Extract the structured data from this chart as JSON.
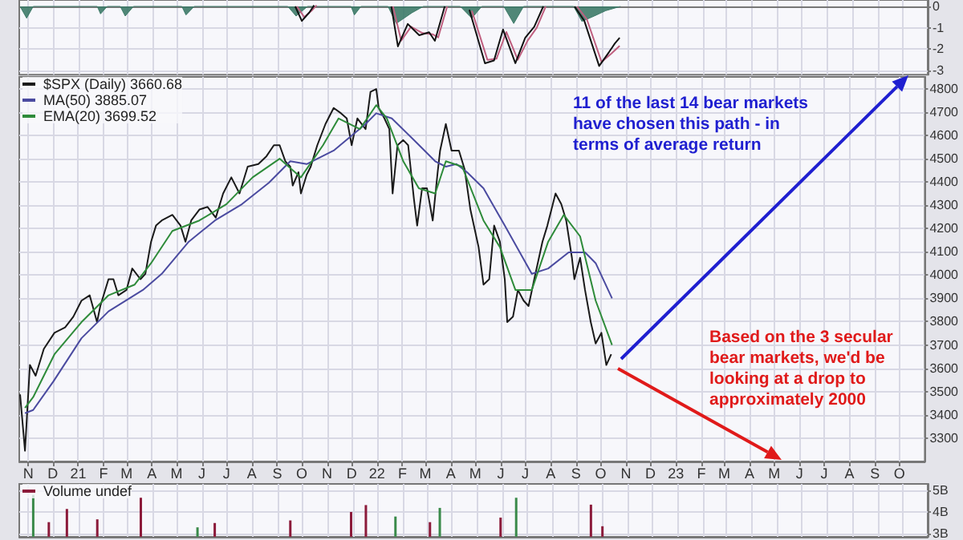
{
  "chart_data": [
    {
      "type": "line",
      "xlim": [
        "2020-10-21",
        "2023-11-01"
      ],
      "ylim": [
        -3.2,
        0.3
      ],
      "yticks": [
        0,
        -1,
        -2,
        -3
      ],
      "tick_labels": "y",
      "grid": true,
      "legend": false,
      "xticks": [
        {
          "value": "2020-11-01",
          "label": null
        },
        {
          "value": "2020-12-01",
          "label": null
        },
        {
          "value": "2021-01-01",
          "label": null
        },
        {
          "value": "2021-02-01",
          "label": null
        },
        {
          "value": "2021-03-01",
          "label": null
        },
        {
          "value": "2021-04-01",
          "label": null
        },
        {
          "value": "2021-05-01",
          "label": null
        },
        {
          "value": "2021-06-01",
          "label": null
        },
        {
          "value": "2021-07-01",
          "label": null
        },
        {
          "value": "2021-08-01",
          "label": null
        },
        {
          "value": "2021-09-01",
          "label": null
        },
        {
          "value": "2021-10-01",
          "label": null
        },
        {
          "value": "2021-11-01",
          "label": null
        },
        {
          "value": "2021-12-01",
          "label": null
        },
        {
          "value": "2022-01-01",
          "label": null
        },
        {
          "value": "2022-02-01",
          "label": null
        },
        {
          "value": "2022-03-01",
          "label": null
        },
        {
          "value": "2022-04-01",
          "label": null
        },
        {
          "value": "2022-05-01",
          "label": null
        },
        {
          "value": "2022-06-01",
          "label": null
        },
        {
          "value": "2022-07-01",
          "label": null
        },
        {
          "value": "2022-08-01",
          "label": null
        },
        {
          "value": "2022-09-01",
          "label": null
        },
        {
          "value": "2022-10-01",
          "label": null
        },
        {
          "value": "2022-11-01",
          "label": null
        },
        {
          "value": "2022-12-01",
          "label": null
        },
        {
          "value": "2023-01-01",
          "label": null
        },
        {
          "value": "2023-02-01",
          "label": null
        },
        {
          "value": "2023-03-01",
          "label": null
        },
        {
          "value": "2023-04-01",
          "label": null
        },
        {
          "value": "2023-05-01",
          "label": null
        },
        {
          "value": "2023-06-01",
          "label": null
        },
        {
          "value": "2023-07-01",
          "label": null
        },
        {
          "value": "2023-08-01",
          "label": null
        },
        {
          "value": "2023-09-01",
          "label": null
        },
        {
          "value": "2023-10-01",
          "label": null
        }
      ],
      "series": [
        {
          "type": "area",
          "color": "#3d7a68",
          "x": [
            "2020-10-22",
            "2020-10-30",
            "2020-11-07",
            "2021-01-24",
            "2021-01-28",
            "2021-02-05",
            "2021-02-21",
            "2021-02-27",
            "2021-03-09",
            "2021-05-07",
            "2021-05-12",
            "2021-05-22",
            "2021-09-13",
            "2021-09-23",
            "2021-10-07",
            "2021-11-29",
            "2021-12-03",
            "2021-12-11",
            "2022-01-13",
            "2022-01-23",
            "2022-02-11",
            "2022-02-25",
            "2022-04-11",
            "2022-04-25",
            "2022-05-07",
            "2022-06-03",
            "2022-06-15",
            "2022-06-27",
            "2022-08-27",
            "2022-09-06",
            "2022-09-21",
            "2022-10-05",
            "2022-10-23"
          ],
          "values": [
            0,
            -0.55,
            0,
            0,
            -0.35,
            0,
            0,
            -0.45,
            0,
            0,
            -0.4,
            0,
            0,
            -0.45,
            0,
            0,
            -0.4,
            0,
            0,
            -0.8,
            -0.3,
            0,
            0,
            -0.55,
            0,
            0,
            -0.8,
            0,
            0,
            -0.7,
            -0.45,
            -0.2,
            0
          ]
        },
        {
          "color": "#c06080",
          "x": [
            "2021-09-24",
            "2021-10-03",
            "2021-10-12",
            "2021-10-18",
            "2021-12-01",
            "2022-01-19",
            "2022-01-29",
            "2022-02-10",
            "2022-02-24",
            "2022-03-08",
            "2022-03-15",
            "2022-03-26",
            "2022-04-08",
            "2022-04-25",
            "2022-05-14",
            "2022-05-25",
            "2022-06-06",
            "2022-06-20",
            "2022-07-02",
            "2022-07-13",
            "2022-07-24",
            "2022-08-12",
            "2022-08-31",
            "2022-09-12",
            "2022-09-30",
            "2022-10-12",
            "2022-10-22"
          ],
          "values": [
            0,
            -0.5,
            -0.2,
            0.05,
            null,
            0,
            -1.6,
            -0.95,
            -1.25,
            -1.3,
            -1.45,
            0,
            null,
            -0.2,
            -2.5,
            -2.45,
            -1.2,
            -2.5,
            -1.6,
            -1.0,
            0,
            null,
            0,
            -0.6,
            -2.6,
            -2.2,
            -1.85
          ]
        },
        {
          "color": "#111111",
          "x": [
            "2021-09-22",
            "2021-09-30",
            "2021-10-09",
            "2021-10-15",
            "2021-12-01",
            "2022-01-17",
            "2022-01-25",
            "2022-02-06",
            "2022-02-20",
            "2022-03-04",
            "2022-03-11",
            "2022-03-23",
            "2022-04-05",
            "2022-04-22",
            "2022-05-11",
            "2022-05-22",
            "2022-06-02",
            "2022-06-17",
            "2022-06-29",
            "2022-07-10",
            "2022-07-21",
            "2022-08-10",
            "2022-08-28",
            "2022-09-09",
            "2022-09-27",
            "2022-10-09",
            "2022-10-16",
            "2022-10-22"
          ],
          "values": [
            0,
            -0.68,
            -0.29,
            0.05,
            null,
            0,
            -1.87,
            -0.82,
            -1.35,
            -1.21,
            -1.61,
            0,
            null,
            -0.16,
            -2.66,
            -2.53,
            -1.08,
            -2.66,
            -1.47,
            -0.95,
            0,
            null,
            0,
            -0.68,
            -2.79,
            -2.14,
            -1.74,
            -1.47
          ]
        }
      ]
    },
    {
      "type": "line",
      "xlim": [
        "2020-10-21",
        "2023-11-01"
      ],
      "ylim": [
        3200,
        4850
      ],
      "yticks": [
        3300,
        3400,
        3500,
        3600,
        3700,
        3800,
        3900,
        4000,
        4100,
        4200,
        4300,
        4400,
        4500,
        4600,
        4700,
        4800
      ],
      "grid": true,
      "legend": "top left",
      "xticks": [
        {
          "value": "2020-11-01",
          "label": "N"
        },
        {
          "value": "2020-12-01",
          "label": "D"
        },
        {
          "value": "2021-01-01",
          "label": "21"
        },
        {
          "value": "2021-02-01",
          "label": "F"
        },
        {
          "value": "2021-03-01",
          "label": "M"
        },
        {
          "value": "2021-04-01",
          "label": "A"
        },
        {
          "value": "2021-05-01",
          "label": "M"
        },
        {
          "value": "2021-06-01",
          "label": "J"
        },
        {
          "value": "2021-07-01",
          "label": "J"
        },
        {
          "value": "2021-08-01",
          "label": "A"
        },
        {
          "value": "2021-09-01",
          "label": "S"
        },
        {
          "value": "2021-10-01",
          "label": "O"
        },
        {
          "value": "2021-11-01",
          "label": "N"
        },
        {
          "value": "2021-12-01",
          "label": "D"
        },
        {
          "value": "2022-01-01",
          "label": "22"
        },
        {
          "value": "2022-02-01",
          "label": "F"
        },
        {
          "value": "2022-03-01",
          "label": "M"
        },
        {
          "value": "2022-04-01",
          "label": "A"
        },
        {
          "value": "2022-05-01",
          "label": "M"
        },
        {
          "value": "2022-06-01",
          "label": "J"
        },
        {
          "value": "2022-07-01",
          "label": "J"
        },
        {
          "value": "2022-08-01",
          "label": "A"
        },
        {
          "value": "2022-09-01",
          "label": "S"
        },
        {
          "value": "2022-10-01",
          "label": "O"
        },
        {
          "value": "2022-11-01",
          "label": "N"
        },
        {
          "value": "2022-12-01",
          "label": "D"
        },
        {
          "value": "2023-01-01",
          "label": "23"
        },
        {
          "value": "2023-02-01",
          "label": "F"
        },
        {
          "value": "2023-03-01",
          "label": "M"
        },
        {
          "value": "2023-04-01",
          "label": "A"
        },
        {
          "value": "2023-05-01",
          "label": "M"
        },
        {
          "value": "2023-06-01",
          "label": "J"
        },
        {
          "value": "2023-07-01",
          "label": "J"
        },
        {
          "value": "2023-08-01",
          "label": "A"
        },
        {
          "value": "2023-09-01",
          "label": "S"
        },
        {
          "value": "2023-10-01",
          "label": "O"
        }
      ],
      "annotations": [
        "11 of the last 14 bear markets have chosen this path - in terms of average return",
        "Based on the 3 secular bear markets, we'd be looking at a drop to approximately 2000"
      ],
      "series": [
        {
          "name": "$SPX (Daily) 3660.68",
          "color": "#1a1a1a",
          "x": [
            "2020-10-22",
            "2020-10-28",
            "2020-11-03",
            "2020-11-10",
            "2020-11-20",
            "2020-12-03",
            "2020-12-16",
            "2020-12-26",
            "2021-01-05",
            "2021-01-15",
            "2021-01-24",
            "2021-01-28",
            "2021-02-07",
            "2021-02-13",
            "2021-02-19",
            "2021-03-01",
            "2021-03-08",
            "2021-03-18",
            "2021-03-24",
            "2021-03-31",
            "2021-04-06",
            "2021-04-13",
            "2021-04-26",
            "2021-05-06",
            "2021-05-12",
            "2021-05-19",
            "2021-05-29",
            "2021-06-08",
            "2021-06-18",
            "2021-06-27",
            "2021-07-07",
            "2021-07-17",
            "2021-07-27",
            "2021-08-09",
            "2021-08-19",
            "2021-08-28",
            "2021-09-04",
            "2021-09-11",
            "2021-09-17",
            "2021-09-20",
            "2021-09-27",
            "2021-09-30",
            "2021-10-07",
            "2021-10-12",
            "2021-10-20",
            "2021-10-30",
            "2021-11-09",
            "2021-11-18",
            "2021-11-25",
            "2021-12-01",
            "2021-12-08",
            "2021-12-18",
            "2021-12-24",
            "2021-12-31",
            "2022-01-03",
            "2022-01-10",
            "2022-01-16",
            "2022-01-20",
            "2022-01-26",
            "2022-02-02",
            "2022-02-08",
            "2022-02-15",
            "2022-02-19",
            "2022-02-25",
            "2022-03-03",
            "2022-03-10",
            "2022-03-16",
            "2022-03-19",
            "2022-03-26",
            "2022-04-02",
            "2022-04-11",
            "2022-04-18",
            "2022-04-25",
            "2022-05-05",
            "2022-05-11",
            "2022-05-18",
            "2022-05-24",
            "2022-05-31",
            "2022-06-06",
            "2022-06-09",
            "2022-06-16",
            "2022-06-22",
            "2022-06-29",
            "2022-07-05",
            "2022-07-12",
            "2022-07-22",
            "2022-07-28",
            "2022-08-07",
            "2022-08-14",
            "2022-08-20",
            "2022-08-27",
            "2022-08-30",
            "2022-09-06",
            "2022-09-12",
            "2022-09-19",
            "2022-09-25",
            "2022-10-02",
            "2022-10-08",
            "2022-10-14"
          ],
          "values": [
            3488,
            3246,
            3614,
            3568,
            3683,
            3752,
            3775,
            3821,
            3890,
            3913,
            3798,
            3867,
            3982,
            3982,
            3913,
            3936,
            4028,
            3982,
            4005,
            4143,
            4212,
            4234,
            4258,
            4212,
            4143,
            4234,
            4281,
            4292,
            4246,
            4350,
            4419,
            4350,
            4465,
            4476,
            4510,
            4557,
            4557,
            4488,
            4465,
            4384,
            4441,
            4350,
            4430,
            4465,
            4557,
            4648,
            4717,
            4694,
            4672,
            4557,
            4672,
            4626,
            4786,
            4798,
            4717,
            4672,
            4626,
            4350,
            4557,
            4579,
            4557,
            4327,
            4212,
            4372,
            4372,
            4234,
            4441,
            4534,
            4648,
            4534,
            4534,
            4453,
            4281,
            4120,
            3959,
            3982,
            4212,
            4143,
            3982,
            3798,
            3821,
            3936,
            3890,
            3867,
            3982,
            4143,
            4212,
            4350,
            4304,
            4234,
            4074,
            3982,
            4074,
            3936,
            3798,
            3706,
            3752,
            3614,
            3660
          ]
        },
        {
          "name": "MA(50) 3885.07",
          "color": "#4b4ba0",
          "x": [
            "2020-10-28",
            "2020-11-07",
            "2020-12-02",
            "2021-01-05",
            "2021-02-07",
            "2021-03-21",
            "2021-04-13",
            "2021-05-16",
            "2021-06-17",
            "2021-07-20",
            "2021-08-22",
            "2021-09-17",
            "2021-10-07",
            "2021-11-09",
            "2021-12-18",
            "2021-12-31",
            "2022-01-19",
            "2022-02-15",
            "2022-03-13",
            "2022-03-26",
            "2022-04-08",
            "2022-04-21",
            "2022-05-11",
            "2022-06-06",
            "2022-07-09",
            "2022-07-29",
            "2022-08-23",
            "2022-09-12",
            "2022-09-25",
            "2022-10-15"
          ],
          "values": [
            3407,
            3421,
            3545,
            3729,
            3844,
            3936,
            4005,
            4143,
            4234,
            4304,
            4396,
            4488,
            4476,
            4534,
            4648,
            4694,
            4672,
            4579,
            4488,
            4465,
            4476,
            4441,
            4372,
            4212,
            4005,
            4028,
            4097,
            4097,
            4051,
            3900
          ]
        },
        {
          "name": "EMA(20) 3699.52",
          "color": "#2e8b3a",
          "x": [
            "2020-10-28",
            "2020-11-07",
            "2020-12-03",
            "2021-01-05",
            "2021-02-07",
            "2021-03-11",
            "2021-03-31",
            "2021-04-26",
            "2021-05-29",
            "2021-07-01",
            "2021-08-02",
            "2021-09-04",
            "2021-09-30",
            "2021-10-27",
            "2021-11-15",
            "2021-12-11",
            "2021-12-31",
            "2022-01-13",
            "2022-02-02",
            "2022-02-21",
            "2022-03-13",
            "2022-03-26",
            "2022-04-15",
            "2022-05-11",
            "2022-05-31",
            "2022-06-19",
            "2022-07-09",
            "2022-07-29",
            "2022-08-17",
            "2022-09-06",
            "2022-09-25",
            "2022-10-15"
          ],
          "values": [
            3430,
            3476,
            3660,
            3798,
            3913,
            3959,
            4051,
            4189,
            4234,
            4304,
            4419,
            4499,
            4419,
            4557,
            4672,
            4626,
            4729,
            4672,
            4488,
            4372,
            4350,
            4488,
            4465,
            4234,
            4120,
            3936,
            3936,
            4143,
            4258,
            4166,
            3890,
            3700
          ]
        }
      ]
    },
    {
      "type": "bar",
      "xlim": [
        "2020-10-21",
        "2023-11-01"
      ],
      "ylim": [
        2.85,
        5.3
      ],
      "yticks": [
        {
          "value": 5,
          "label": "5B"
        },
        {
          "value": 4,
          "label": "4B"
        },
        {
          "value": 3,
          "label": "3B"
        }
      ],
      "tick_labels": "y",
      "grid": true,
      "legend": "top left",
      "xticks": [
        {
          "value": "2020-11-01",
          "label": null
        },
        {
          "value": "2020-12-01",
          "label": null
        },
        {
          "value": "2021-01-01",
          "label": null
        },
        {
          "value": "2021-02-01",
          "label": null
        },
        {
          "value": "2021-03-01",
          "label": null
        },
        {
          "value": "2021-04-01",
          "label": null
        },
        {
          "value": "2021-05-01",
          "label": null
        },
        {
          "value": "2021-06-01",
          "label": null
        },
        {
          "value": "2021-07-01",
          "label": null
        },
        {
          "value": "2021-08-01",
          "label": null
        },
        {
          "value": "2021-09-01",
          "label": null
        },
        {
          "value": "2021-10-01",
          "label": null
        },
        {
          "value": "2021-11-01",
          "label": null
        },
        {
          "value": "2021-12-01",
          "label": null
        },
        {
          "value": "2022-01-01",
          "label": null
        },
        {
          "value": "2022-02-01",
          "label": null
        },
        {
          "value": "2022-03-01",
          "label": null
        },
        {
          "value": "2022-04-01",
          "label": null
        },
        {
          "value": "2022-05-01",
          "label": null
        },
        {
          "value": "2022-06-01",
          "label": null
        },
        {
          "value": "2022-07-01",
          "label": null
        },
        {
          "value": "2022-08-01",
          "label": null
        },
        {
          "value": "2022-09-01",
          "label": null
        },
        {
          "value": "2022-10-01",
          "label": null
        },
        {
          "value": "2022-11-01",
          "label": null
        },
        {
          "value": "2022-12-01",
          "label": null
        },
        {
          "value": "2023-01-01",
          "label": null
        },
        {
          "value": "2023-02-01",
          "label": null
        },
        {
          "value": "2023-03-01",
          "label": null
        },
        {
          "value": "2023-04-01",
          "label": null
        },
        {
          "value": "2023-05-01",
          "label": null
        },
        {
          "value": "2023-06-01",
          "label": null
        },
        {
          "value": "2023-07-01",
          "label": null
        },
        {
          "value": "2023-08-01",
          "label": null
        },
        {
          "value": "2023-09-01",
          "label": null
        },
        {
          "value": "2023-10-01",
          "label": null
        }
      ],
      "series": [
        {
          "name": "Volume undef",
          "color": "#8b1a3a",
          "x": [
            "2020-11-07",
            "2020-11-26",
            "2020-12-18",
            "2021-01-24",
            "2021-03-18",
            "2021-05-26",
            "2021-06-16",
            "2021-09-16",
            "2021-11-29",
            "2021-12-17",
            "2022-01-22",
            "2022-03-05",
            "2022-03-17",
            "2022-05-30",
            "2022-06-18",
            "2022-09-17",
            "2022-10-01"
          ],
          "values": [
            4.79,
            3.53,
            4.14,
            3.66,
            4.66,
            3.29,
            3.49,
            3.61,
            4.0,
            4.32,
            3.79,
            3.53,
            4.19,
            3.74,
            4.66,
            4.34,
            3.34
          ],
          "colors": [
            "#3a8a4a",
            "#8b1a3a",
            "#8b1a3a",
            "#8b1a3a",
            "#8b1a3a",
            "#3a8a4a",
            "#8b1a3a",
            "#8b1a3a",
            "#8b1a3a",
            "#8b1a3a",
            "#3a8a4a",
            "#8b1a3a",
            "#3a8a4a",
            "#8b1a3a",
            "#3a8a4a",
            "#8b1a3a",
            "#8b1a3a"
          ]
        }
      ]
    }
  ]
}
